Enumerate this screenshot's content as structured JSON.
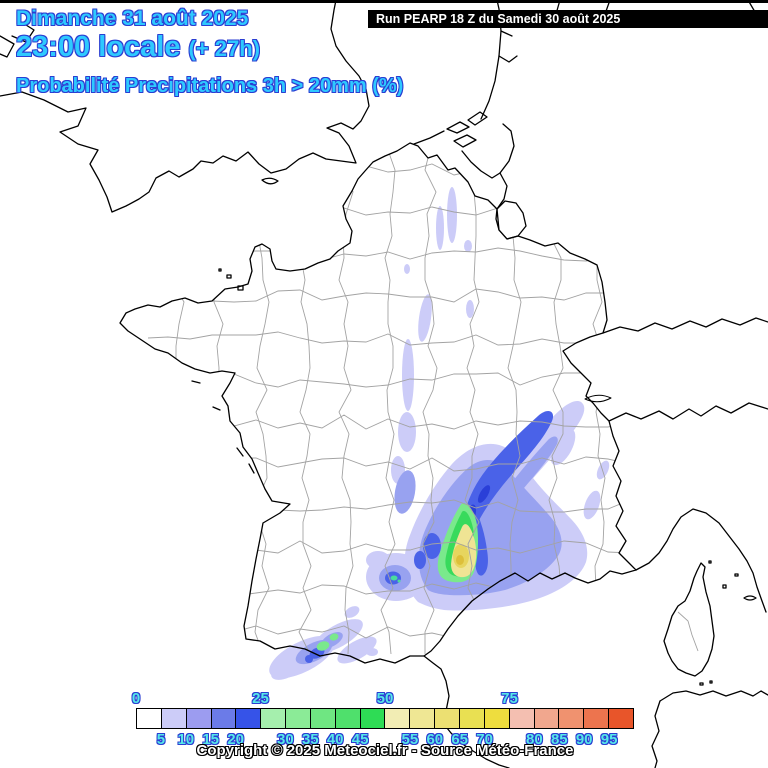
{
  "header": {
    "date_line": "Dimanche 31 août 2025",
    "time_line": "23:00 locale",
    "time_offset": "(+ 27h)",
    "subtitle": "Probabilité Precipitations 3h > 20mm (%)",
    "run_label": "Run PEARP 18 Z du Samedi 30 août 2025"
  },
  "footer": {
    "copyright": "Copyright © 2025 Meteociel.fr - Source Météo-France"
  },
  "colors": {
    "title_fill": "#2ec9ff",
    "title_outline": "#2b3ed2",
    "tick_fill": "#57e8e8",
    "tick_outline": "#2b3ed2",
    "run_bg": "#000000",
    "run_fg": "#ffffff",
    "copyright_fill": "#ffffff",
    "copyright_outline": "#000000",
    "frame": "#000000",
    "coastline": "#000000",
    "department_line": "#a3a3a3"
  },
  "legend": {
    "unit": "%",
    "cell_colors": [
      "#ffffff",
      "#ccccf8",
      "#9c9cf0",
      "#6b7be8",
      "#3653e8",
      "#a5efad",
      "#8beb97",
      "#6fe682",
      "#4fe06c",
      "#2edc55",
      "#f2edb4",
      "#efe794",
      "#ece072",
      "#e9e052",
      "#eedd3e",
      "#f4bfb1",
      "#f1a78e",
      "#f0926f",
      "#ed744e",
      "#e8552a"
    ],
    "major_ticks": [
      {
        "label": "0",
        "pos": 0
      },
      {
        "label": "25",
        "pos": 5
      },
      {
        "label": "50",
        "pos": 10
      },
      {
        "label": "75",
        "pos": 15
      }
    ],
    "minor_ticks": [
      {
        "label": "5",
        "pos": 1
      },
      {
        "label": "10",
        "pos": 2
      },
      {
        "label": "15",
        "pos": 3
      },
      {
        "label": "20",
        "pos": 4
      },
      {
        "label": "30",
        "pos": 6
      },
      {
        "label": "35",
        "pos": 7
      },
      {
        "label": "40",
        "pos": 8
      },
      {
        "label": "45",
        "pos": 9
      },
      {
        "label": "55",
        "pos": 11
      },
      {
        "label": "60",
        "pos": 12
      },
      {
        "label": "65",
        "pos": 13
      },
      {
        "label": "70",
        "pos": 14
      },
      {
        "label": "80",
        "pos": 16
      },
      {
        "label": "85",
        "pos": 17
      },
      {
        "label": "90",
        "pos": 18
      },
      {
        "label": "95",
        "pos": 19
      }
    ]
  }
}
